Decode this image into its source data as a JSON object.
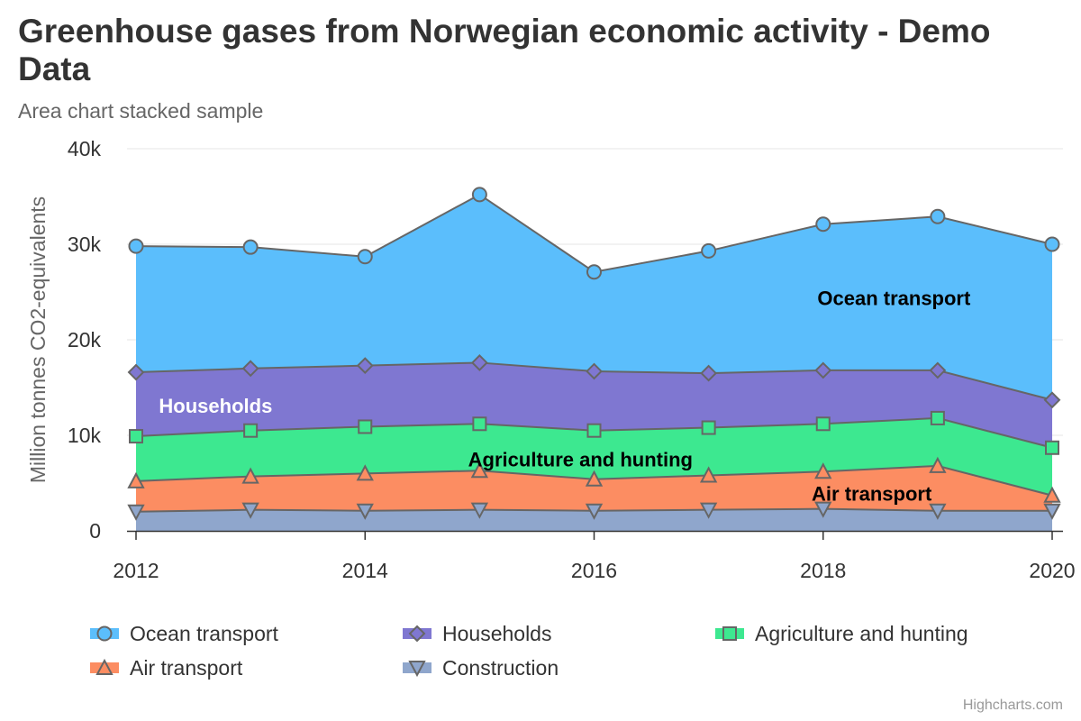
{
  "chart_title": "Greenhouse gases from Norwegian economic activity - Demo Data",
  "chart_subtitle": "Area chart stacked sample",
  "credits": "Highcharts.com",
  "chart_data": {
    "type": "area",
    "stacked": true,
    "title": "Greenhouse gases from Norwegian economic activity - Demo Data",
    "subtitle": "Area chart stacked sample",
    "xlabel": "",
    "ylabel": "Million tonnes CO2-equivalents",
    "x": [
      2012,
      2013,
      2014,
      2015,
      2016,
      2017,
      2018,
      2019,
      2020
    ],
    "x_ticks": [
      "2012",
      "2014",
      "2016",
      "2018",
      "2020"
    ],
    "ylim": [
      0,
      40000
    ],
    "y_ticks": [
      "0",
      "10k",
      "20k",
      "30k",
      "40k"
    ],
    "grid": true,
    "legend_position": "bottom",
    "series": [
      {
        "name": "Ocean transport",
        "color": "#5bbefc",
        "marker": "circle",
        "values": [
          13200,
          12700,
          11400,
          17600,
          10400,
          12800,
          15300,
          16100,
          16300
        ]
      },
      {
        "name": "Households",
        "color": "#7f77d1",
        "marker": "diamond",
        "values": [
          6700,
          6500,
          6400,
          6400,
          6200,
          5700,
          5600,
          5000,
          5000
        ]
      },
      {
        "name": "Agriculture and hunting",
        "color": "#3de890",
        "marker": "square",
        "values": [
          4700,
          4800,
          4900,
          4900,
          5100,
          5000,
          5000,
          5000,
          5000
        ]
      },
      {
        "name": "Air transport",
        "color": "#fc8d62",
        "marker": "triangle",
        "values": [
          3200,
          3500,
          3900,
          4100,
          3300,
          3600,
          3900,
          4700,
          1600
        ]
      },
      {
        "name": "Construction",
        "color": "#8fa6cc",
        "marker": "triangle-down",
        "values": [
          2000,
          2200,
          2100,
          2200,
          2100,
          2200,
          2300,
          2100,
          2100
        ]
      }
    ],
    "annotations": [
      {
        "text": "Ocean transport",
        "color": "#000000"
      },
      {
        "text": "Households",
        "color": "#ffffff"
      },
      {
        "text": "Agriculture and hunting",
        "color": "#000000"
      },
      {
        "text": "Air transport",
        "color": "#000000"
      }
    ]
  }
}
